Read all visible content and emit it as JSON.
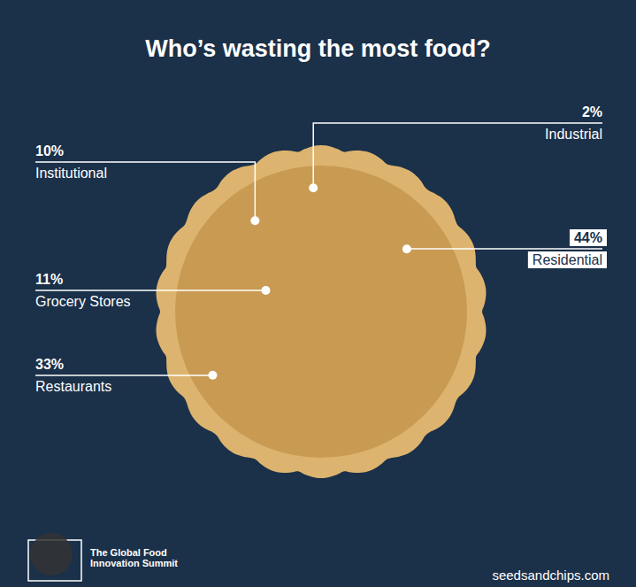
{
  "chart_data": {
    "type": "pie",
    "title": "Who’s wasting the most food?",
    "categories": [
      "Residential",
      "Restaurants",
      "Grocery Stores",
      "Institutional",
      "Industrial"
    ],
    "values": [
      44,
      33,
      11,
      10,
      2
    ],
    "value_labels": [
      "44%",
      "33%",
      "11%",
      "10%",
      "2%"
    ],
    "colors": [
      "#E8922A",
      "#4A2E1E",
      "#F5EEB8",
      "#E8303A",
      "#C8E6C0"
    ],
    "data_labels": true,
    "annotations": [
      "The Global Food Innovation Summit",
      "seedsandchips.com"
    ]
  }
}
